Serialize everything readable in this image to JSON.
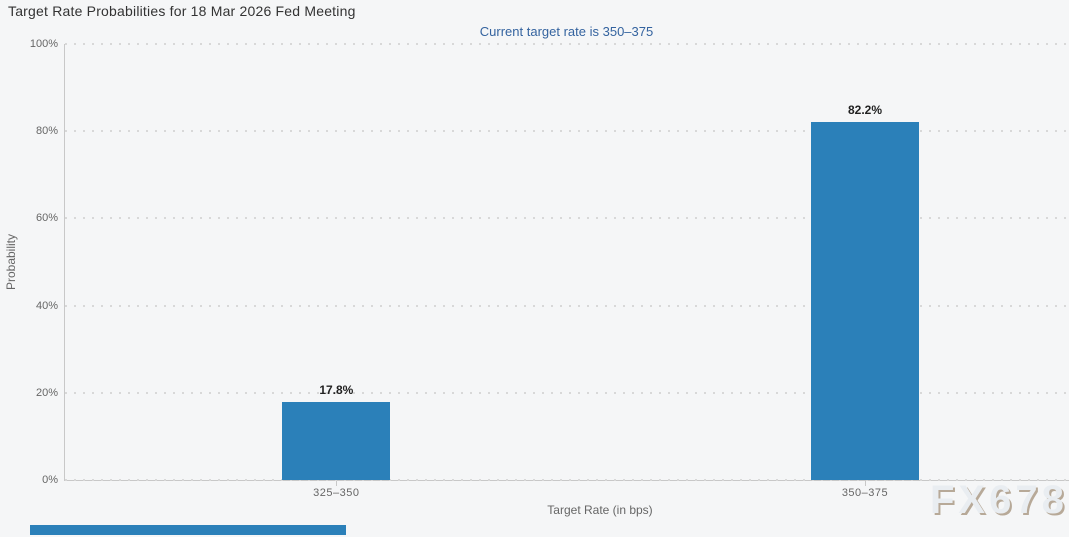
{
  "header": {
    "title": "Target Rate Probabilities for 18 Mar 2026 Fed Meeting",
    "subtitle": "Current target rate is 350–375"
  },
  "axes": {
    "x_title": "Target Rate (in bps)",
    "y_title": "Probability"
  },
  "watermark": {
    "text": "FX678"
  },
  "colors": {
    "background": "#f5f6f7",
    "bar": "#2b80b9",
    "subtitle_text": "#34639f",
    "axis_text": "#666666",
    "grid": "#d8d8d8",
    "axis_line": "#c8c8c8",
    "bottom_strip": "#2b80b9"
  },
  "chart_data": {
    "type": "bar",
    "title": "Target Rate Probabilities for 18 Mar 2026 Fed Meeting",
    "subtitle": "Current target rate is 350–375",
    "categories": [
      "325–350",
      "350–375"
    ],
    "values": [
      17.8,
      82.2
    ],
    "data_labels": [
      "17.8%",
      "82.2%"
    ],
    "xlabel": "Target Rate (in bps)",
    "ylabel": "Probability",
    "ylim": [
      0,
      100
    ],
    "yticks": [
      0,
      20,
      40,
      60,
      80,
      100
    ],
    "ytick_labels": [
      "0%",
      "20%",
      "40%",
      "60%",
      "80%",
      "100%"
    ],
    "grid": "dotted-horizontal",
    "legend": "none",
    "bar_color": "#2b80b9"
  }
}
